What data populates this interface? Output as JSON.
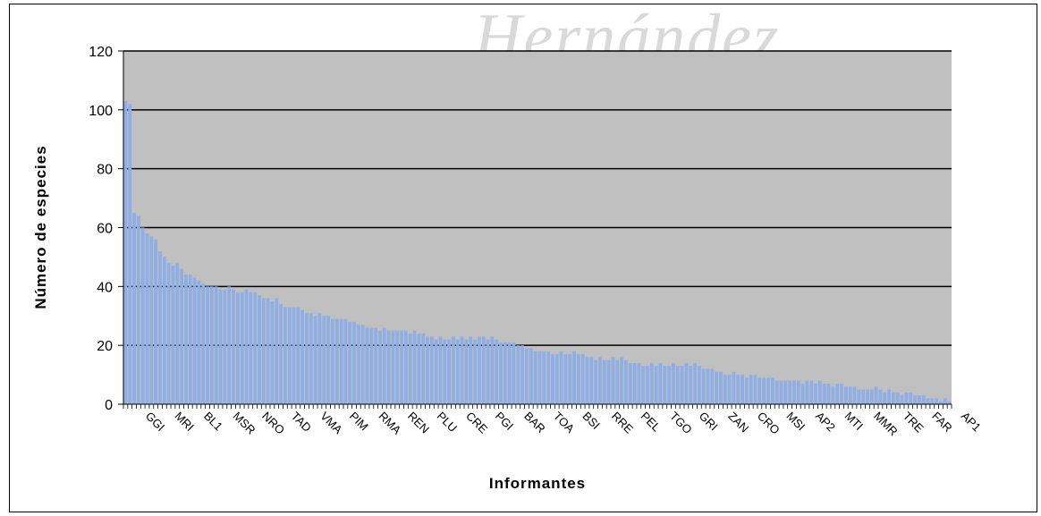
{
  "watermark": "Hernández",
  "chart_data": {
    "type": "bar",
    "title": "",
    "xlabel": "Informantes",
    "ylabel": "Número de especies",
    "ylim": [
      0,
      120
    ],
    "yticks": [
      0,
      20,
      40,
      60,
      80,
      100,
      120
    ],
    "grid": true,
    "legend": "none",
    "colors": {
      "bar": "#8eaee6",
      "plot_bg": "#c0c0c0",
      "grid": "#000000"
    },
    "category_labels": [
      "GGI",
      "MRI",
      "BL1",
      "MSR",
      "NRO",
      "TAD",
      "VMA",
      "PIM",
      "RMA",
      "REN",
      "PLU",
      "CRE",
      "PGI",
      "BAR",
      "TOA",
      "BSI",
      "RRE",
      "PEL",
      "TGO",
      "GRI",
      "ZAN",
      "CRO",
      "MSI",
      "AP2",
      "MTI",
      "MMR",
      "TRE",
      "FAR",
      "AP1"
    ],
    "values": [
      103,
      102,
      65,
      64,
      60,
      58,
      57,
      56,
      52,
      50,
      48,
      47,
      48,
      46,
      44,
      44,
      43,
      42,
      41,
      40,
      40,
      40,
      39,
      39,
      40,
      39,
      38,
      38,
      39,
      38,
      38,
      37,
      36,
      36,
      35,
      36,
      34,
      33,
      33,
      33,
      33,
      32,
      31,
      31,
      30,
      31,
      30,
      30,
      29,
      29,
      29,
      29,
      28,
      28,
      27,
      27,
      26,
      26,
      26,
      25,
      26,
      25,
      25,
      25,
      25,
      25,
      24,
      25,
      24,
      24,
      23,
      23,
      22,
      23,
      22,
      22,
      23,
      22,
      23,
      22,
      23,
      22,
      23,
      23,
      22,
      23,
      22,
      21,
      21,
      21,
      21,
      20,
      20,
      19,
      19,
      18,
      18,
      18,
      18,
      17,
      17,
      18,
      17,
      17,
      18,
      17,
      17,
      16,
      16,
      15,
      16,
      15,
      15,
      16,
      15,
      16,
      15,
      14,
      14,
      14,
      13,
      13,
      14,
      13,
      14,
      13,
      13,
      14,
      13,
      13,
      14,
      13,
      14,
      13,
      12,
      12,
      12,
      11,
      11,
      10,
      10,
      11,
      10,
      10,
      9,
      10,
      10,
      9,
      9,
      9,
      9,
      8,
      8,
      8,
      8,
      8,
      8,
      7,
      8,
      8,
      7,
      8,
      7,
      7,
      6,
      7,
      7,
      6,
      6,
      6,
      5,
      5,
      5,
      5,
      6,
      5,
      4,
      5,
      4,
      4,
      3,
      4,
      4,
      3,
      3,
      3,
      2,
      2,
      2,
      1,
      2,
      1
    ]
  }
}
